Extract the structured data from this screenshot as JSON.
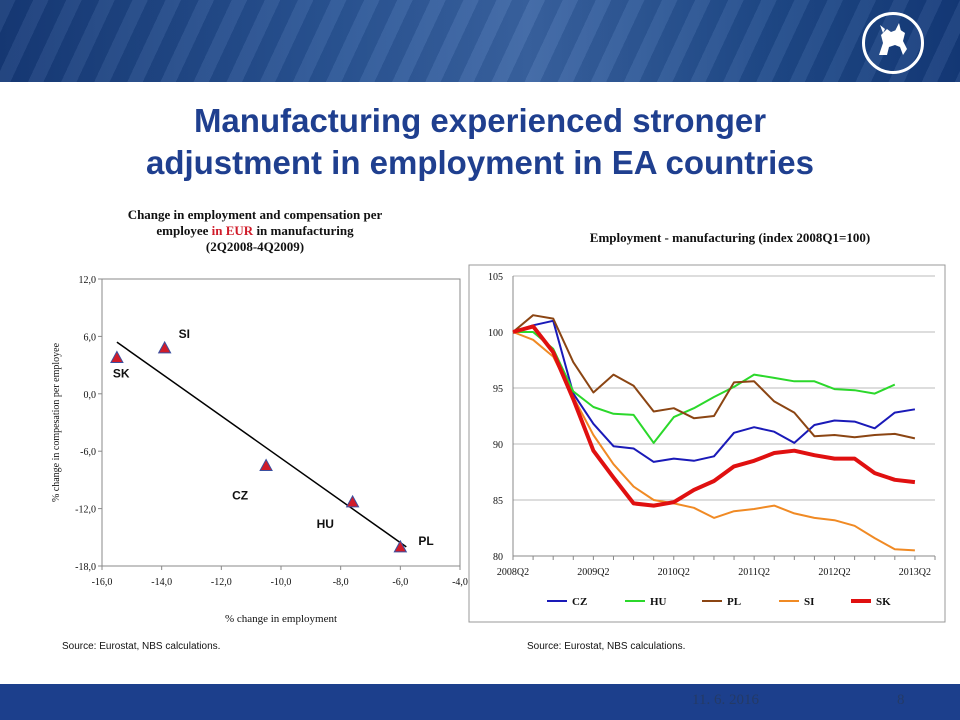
{
  "slide": {
    "title_line1": "Manufacturing experienced stronger",
    "title_line2": "adjustment in employment in EA countries",
    "footer_date": "11. 6. 2016",
    "footer_page": "8",
    "logo_icon": "horse-logo-icon"
  },
  "colors": {
    "title": "#1f3f8f",
    "bar": "#1c3f8c",
    "marker": "#d01c2a",
    "marker_edge": "#3a4fa0"
  },
  "chart_data": [
    {
      "type": "scatter",
      "title_line1": "Change in employment and compensation per",
      "title_line2_pre": "employee ",
      "title_line2_red": "in EUR",
      "title_line2_post": "  in manufacturing",
      "title_line3": "(2Q2008-4Q2009)",
      "xlabel": "% change in employment",
      "ylabel": "% change in compesation per employee",
      "xlim": [
        -16,
        -4
      ],
      "ylim": [
        -18,
        12
      ],
      "xticks": [
        "-16,0",
        "-14,0",
        "-12,0",
        "-10,0",
        "-8,0",
        "-6,0",
        "-4,0"
      ],
      "yticks": [
        "12,0",
        "6,0",
        "0,0",
        "-6,0",
        "-12,0",
        "-18,0"
      ],
      "points": [
        {
          "label": "SK",
          "x": -15.5,
          "y": 3.8
        },
        {
          "label": "SI",
          "x": -13.9,
          "y": 4.8
        },
        {
          "label": "CZ",
          "x": -10.5,
          "y": -7.5
        },
        {
          "label": "HU",
          "x": -7.6,
          "y": -11.3
        },
        {
          "label": "PL",
          "x": -6.0,
          "y": -16.0
        }
      ],
      "trendline": [
        [
          -15.5,
          5.4
        ],
        [
          -5.8,
          -16.0
        ]
      ],
      "source": "Source: Eurostat, NBS calculations."
    },
    {
      "type": "line",
      "title": "Employment - manufacturing (index 2008Q1=100)",
      "xlim": [
        0,
        21
      ],
      "ylim": [
        80,
        105
      ],
      "yticks": [
        "80",
        "85",
        "90",
        "95",
        "100",
        "105"
      ],
      "xtick_labels": [
        "2008Q2",
        "2009Q2",
        "2010Q2",
        "2011Q2",
        "2012Q2",
        "2013Q2"
      ],
      "series": [
        {
          "name": "CZ",
          "color": "#1a1ab8",
          "width": 2,
          "values": [
            100,
            100.6,
            101.0,
            94.5,
            91.8,
            89.8,
            89.6,
            88.4,
            88.7,
            88.5,
            88.9,
            91.0,
            91.5,
            91.1,
            90.1,
            91.7,
            92.1,
            92.0,
            91.4,
            92.8,
            93.1
          ]
        },
        {
          "name": "HU",
          "color": "#2bd82b",
          "width": 2,
          "values": [
            100,
            100.0,
            98.5,
            94.7,
            93.3,
            92.7,
            92.6,
            90.1,
            92.4,
            93.2,
            94.2,
            95.1,
            96.2,
            95.9,
            95.6,
            95.6,
            94.9,
            94.8,
            94.5,
            95.3
          ]
        },
        {
          "name": "PL",
          "color": "#8b4513",
          "width": 2,
          "values": [
            100,
            101.5,
            101.2,
            97.3,
            94.6,
            96.2,
            95.2,
            92.9,
            93.2,
            92.3,
            92.5,
            95.5,
            95.6,
            93.8,
            92.8,
            90.7,
            90.8,
            90.6,
            90.8,
            90.9,
            90.5
          ]
        },
        {
          "name": "SI",
          "color": "#f08a24",
          "width": 2,
          "values": [
            100,
            99.3,
            97.8,
            94.2,
            90.8,
            88.2,
            86.2,
            85.0,
            84.7,
            84.3,
            83.4,
            84.0,
            84.2,
            84.5,
            83.8,
            83.4,
            83.2,
            82.7,
            81.6,
            80.6,
            80.5
          ]
        },
        {
          "name": "SK",
          "color": "#e01010",
          "width": 4,
          "values": [
            100,
            100.5,
            98.2,
            94.0,
            89.4,
            87.0,
            84.7,
            84.5,
            84.8,
            85.9,
            86.7,
            88.0,
            88.5,
            89.2,
            89.4,
            89.0,
            88.7,
            88.7,
            87.4,
            86.8,
            86.6
          ]
        }
      ],
      "source": "Source: Eurostat, NBS calculations."
    }
  ]
}
